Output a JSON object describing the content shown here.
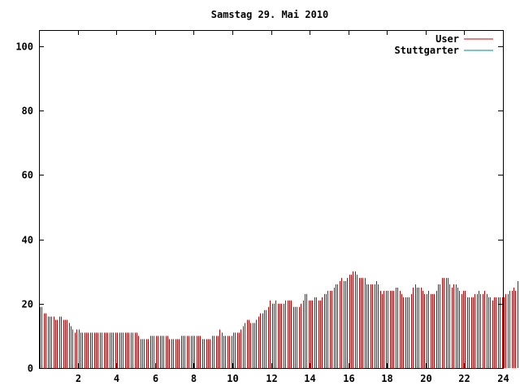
{
  "chart_data": {
    "type": "bar",
    "title": "Samstag 29. Mai 2010",
    "xlabel": "",
    "ylabel": "",
    "xlim": [
      0,
      24
    ],
    "ylim": [
      0,
      105
    ],
    "x_ticks": [
      "2",
      "4",
      "6",
      "8",
      "10",
      "12",
      "14",
      "16",
      "18",
      "20",
      "22",
      "24"
    ],
    "y_ticks": [
      "0",
      "20",
      "40",
      "60",
      "80",
      "100"
    ],
    "grid": false,
    "legend_position": "top-right",
    "series": [
      {
        "name": "User",
        "color": "#cc0000",
        "step_hours": 0.1,
        "values": [
          19,
          19,
          17,
          17,
          16,
          16,
          16,
          16,
          15,
          15,
          16,
          16,
          15,
          15,
          15,
          14,
          13,
          12,
          11,
          12,
          12,
          11,
          11,
          11,
          11,
          11,
          11,
          11,
          11,
          11,
          11,
          11,
          11,
          11,
          11,
          11,
          11,
          11,
          11,
          11,
          11,
          11,
          11,
          11,
          11,
          11,
          11,
          11,
          11,
          11,
          11,
          10,
          9,
          9,
          9,
          9,
          9,
          10,
          10,
          10,
          10,
          10,
          10,
          10,
          10,
          10,
          10,
          9,
          9,
          9,
          9,
          9,
          9,
          10,
          10,
          10,
          10,
          10,
          10,
          10,
          10,
          10,
          10,
          10,
          9,
          9,
          9,
          9,
          9,
          10,
          10,
          10,
          10,
          12,
          11,
          10,
          10,
          10,
          10,
          10,
          11,
          11,
          11,
          11,
          12,
          13,
          14,
          15,
          15,
          14,
          14,
          14,
          15,
          16,
          17,
          17,
          18,
          18,
          19,
          21,
          20,
          20,
          21,
          20,
          20,
          20,
          20,
          21,
          21,
          21,
          21,
          19,
          19,
          19,
          19,
          20,
          21,
          23,
          23,
          21,
          21,
          21,
          22,
          22,
          21,
          21,
          22,
          23,
          23,
          24,
          24,
          24,
          25,
          26,
          26,
          27,
          28,
          27,
          27,
          28,
          29,
          29,
          30,
          30,
          29,
          28,
          28,
          28,
          28,
          26,
          26,
          26,
          26,
          26,
          27,
          26,
          24,
          23,
          24,
          24,
          24,
          24,
          24,
          24,
          25,
          25,
          24,
          23,
          22,
          22,
          22,
          22,
          23,
          25,
          26,
          25,
          25,
          25,
          24,
          23,
          23,
          24,
          23,
          23,
          23,
          24,
          26,
          26,
          28,
          28,
          28,
          28,
          26,
          25,
          26,
          26,
          25,
          24,
          23,
          24,
          24,
          22,
          22,
          22,
          22,
          23,
          23,
          24,
          23,
          23,
          24,
          23,
          22,
          22,
          21,
          22,
          22,
          22,
          22,
          22,
          22,
          23,
          23,
          24,
          24,
          25,
          24,
          27
        ]
      },
      {
        "name": "Stuttgarter",
        "color": "#008b8b",
        "values": []
      }
    ]
  }
}
